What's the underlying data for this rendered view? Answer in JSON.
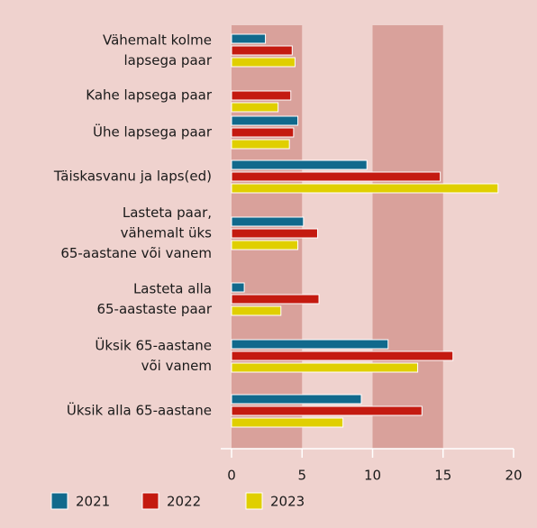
{
  "chart_data": {
    "type": "bar",
    "orientation": "horizontal",
    "categories": [
      [
        "Vähemalt kolme",
        "lapsega paar"
      ],
      [
        "Kahe lapsega paar"
      ],
      [
        "Ühe lapsega paar"
      ],
      [
        "Täiskasvanu ja laps(ed)"
      ],
      [
        "Lasteta paar,",
        "vähemalt üks",
        "65-aastane või vanem"
      ],
      [
        "Lasteta alla",
        "65-aastaste paar"
      ],
      [
        "Üksik 65-aastane",
        "või vanem"
      ],
      [
        "Üksik alla 65-aastane"
      ]
    ],
    "series": [
      {
        "name": "2021",
        "color": "#11698c",
        "values": [
          2.4,
          null,
          4.7,
          9.6,
          5.1,
          0.9,
          11.1,
          9.2
        ]
      },
      {
        "name": "2022",
        "color": "#c41a10",
        "values": [
          4.3,
          4.2,
          4.4,
          14.8,
          6.1,
          6.2,
          15.7,
          13.5
        ]
      },
      {
        "name": "2023",
        "color": "#e0cf00",
        "values": [
          4.5,
          3.3,
          4.1,
          18.9,
          4.7,
          3.5,
          13.2,
          7.9
        ]
      }
    ],
    "xlim": [
      0,
      20
    ],
    "xticks": [
      0,
      5,
      10,
      15,
      20
    ],
    "legend": "bottom"
  }
}
